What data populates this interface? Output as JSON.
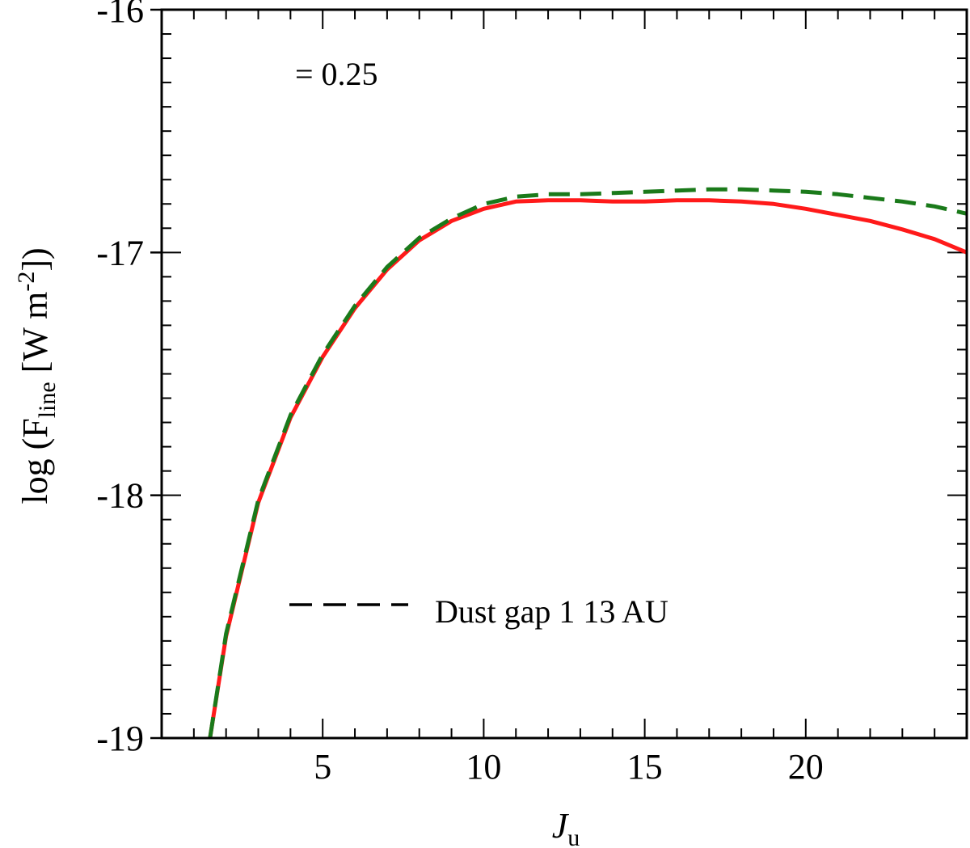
{
  "chart_data": {
    "type": "line",
    "title": "",
    "xlabel": "J",
    "xlabel_sub": "u",
    "ylabel": "log (F",
    "ylabel_sub": "line",
    "ylabel_rest": " [W m",
    "ylabel_sup": "-2",
    "ylabel_end": "])",
    "xlim": [
      0,
      25
    ],
    "ylim": [
      -19,
      -16
    ],
    "xticks": [
      5,
      10,
      15,
      20
    ],
    "xtick_labels": [
      "5",
      "10",
      "15",
      "20"
    ],
    "yticks": [
      -19,
      -18,
      -17,
      -16
    ],
    "ytick_labels": [
      "-19",
      "-18",
      "-17",
      "-16"
    ],
    "x_minor_step": 1,
    "y_minor_step": 0.1,
    "grid": false,
    "annotation": "= 0.25",
    "legend": {
      "placement": "lower-center",
      "entries": [
        "Dust gap 1  13 AU"
      ]
    },
    "series": [
      {
        "color": "#ff1a1a",
        "style": "solid",
        "x": [
          1.5,
          2,
          3,
          4,
          5,
          6,
          7,
          8,
          9,
          10,
          11,
          12,
          13,
          14,
          15,
          16,
          17,
          18,
          19,
          20,
          21,
          22,
          23,
          24,
          25
        ],
        "y": [
          -19.0,
          -18.58,
          -18.03,
          -17.68,
          -17.43,
          -17.23,
          -17.07,
          -16.95,
          -16.87,
          -16.82,
          -16.79,
          -16.785,
          -16.785,
          -16.79,
          -16.79,
          -16.785,
          -16.785,
          -16.79,
          -16.8,
          -16.82,
          -16.845,
          -16.87,
          -16.905,
          -16.945,
          -17.0
        ]
      },
      {
        "name": "Dust gap 1  13 AU",
        "color": "#1a7a1a",
        "style": "dashed",
        "x": [
          1.5,
          2,
          3,
          4,
          5,
          6,
          7,
          8,
          9,
          10,
          11,
          12,
          13,
          14,
          15,
          16,
          17,
          18,
          19,
          20,
          21,
          22,
          23,
          24,
          25
        ],
        "y": [
          -19.0,
          -18.57,
          -18.02,
          -17.67,
          -17.42,
          -17.22,
          -17.06,
          -16.94,
          -16.86,
          -16.8,
          -16.77,
          -16.76,
          -16.76,
          -16.755,
          -16.75,
          -16.745,
          -16.74,
          -16.74,
          -16.745,
          -16.75,
          -16.76,
          -16.775,
          -16.79,
          -16.81,
          -16.84
        ]
      }
    ]
  }
}
